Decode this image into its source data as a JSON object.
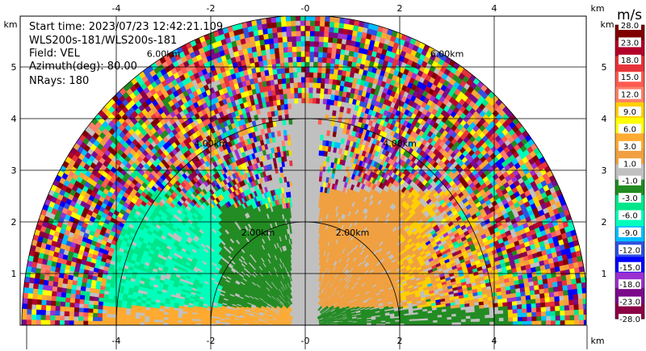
{
  "info": {
    "start_time": "Start time: 2023/07/23 12:42:21.109",
    "instrument": "WLS200s-181/WLS200s-181",
    "field": "Field: VEL",
    "azimuth": "Azimuth(deg): 80.00",
    "nrays": "NRays: 180"
  },
  "colorbar": {
    "unit_label": "m/s",
    "levels": [
      "28.0",
      "23.0",
      "18.0",
      "15.0",
      "12.0",
      "9.0",
      "6.0",
      "3.0",
      "1.0",
      "-1.0",
      "-3.0",
      "-6.0",
      "-9.0",
      "-12.0",
      "-15.0",
      "-18.0",
      "-23.0",
      "-28.0"
    ],
    "colors": [
      "#800000",
      "#b3002a",
      "#e6333a",
      "#ff5a50",
      "#ff7f6a",
      "#ffd000",
      "#ffff00",
      "#ffaa30",
      "#f0a040",
      "#c0c0c0",
      "#228b22",
      "#00e68a",
      "#00ffbb",
      "#00bfff",
      "#3050e0",
      "#0000ff",
      "#9b30d0",
      "#7a0a8a",
      "#8b0045"
    ]
  },
  "chart_data": {
    "type": "heatmap",
    "description_field": "VEL",
    "xlabel": "",
    "ylabel": "",
    "x_unit": "km",
    "y_unit": "km",
    "xlim": [
      -6.0,
      6.0
    ],
    "ylim": [
      0,
      5.6
    ],
    "x_ticks": [
      "-4",
      "-2",
      "-0",
      "2",
      "4"
    ],
    "y_ticks": [
      "1",
      "2",
      "3",
      "4",
      "5"
    ],
    "range_rings": [
      {
        "radius_km": 2.0,
        "label": "2.00km"
      },
      {
        "radius_km": 4.0,
        "label": "4.00km"
      },
      {
        "radius_km": 6.0,
        "label": "6.00km"
      }
    ],
    "max_range_km": 6.0,
    "azimuth_deg": 80.0,
    "nrays": 180,
    "grid": true
  }
}
